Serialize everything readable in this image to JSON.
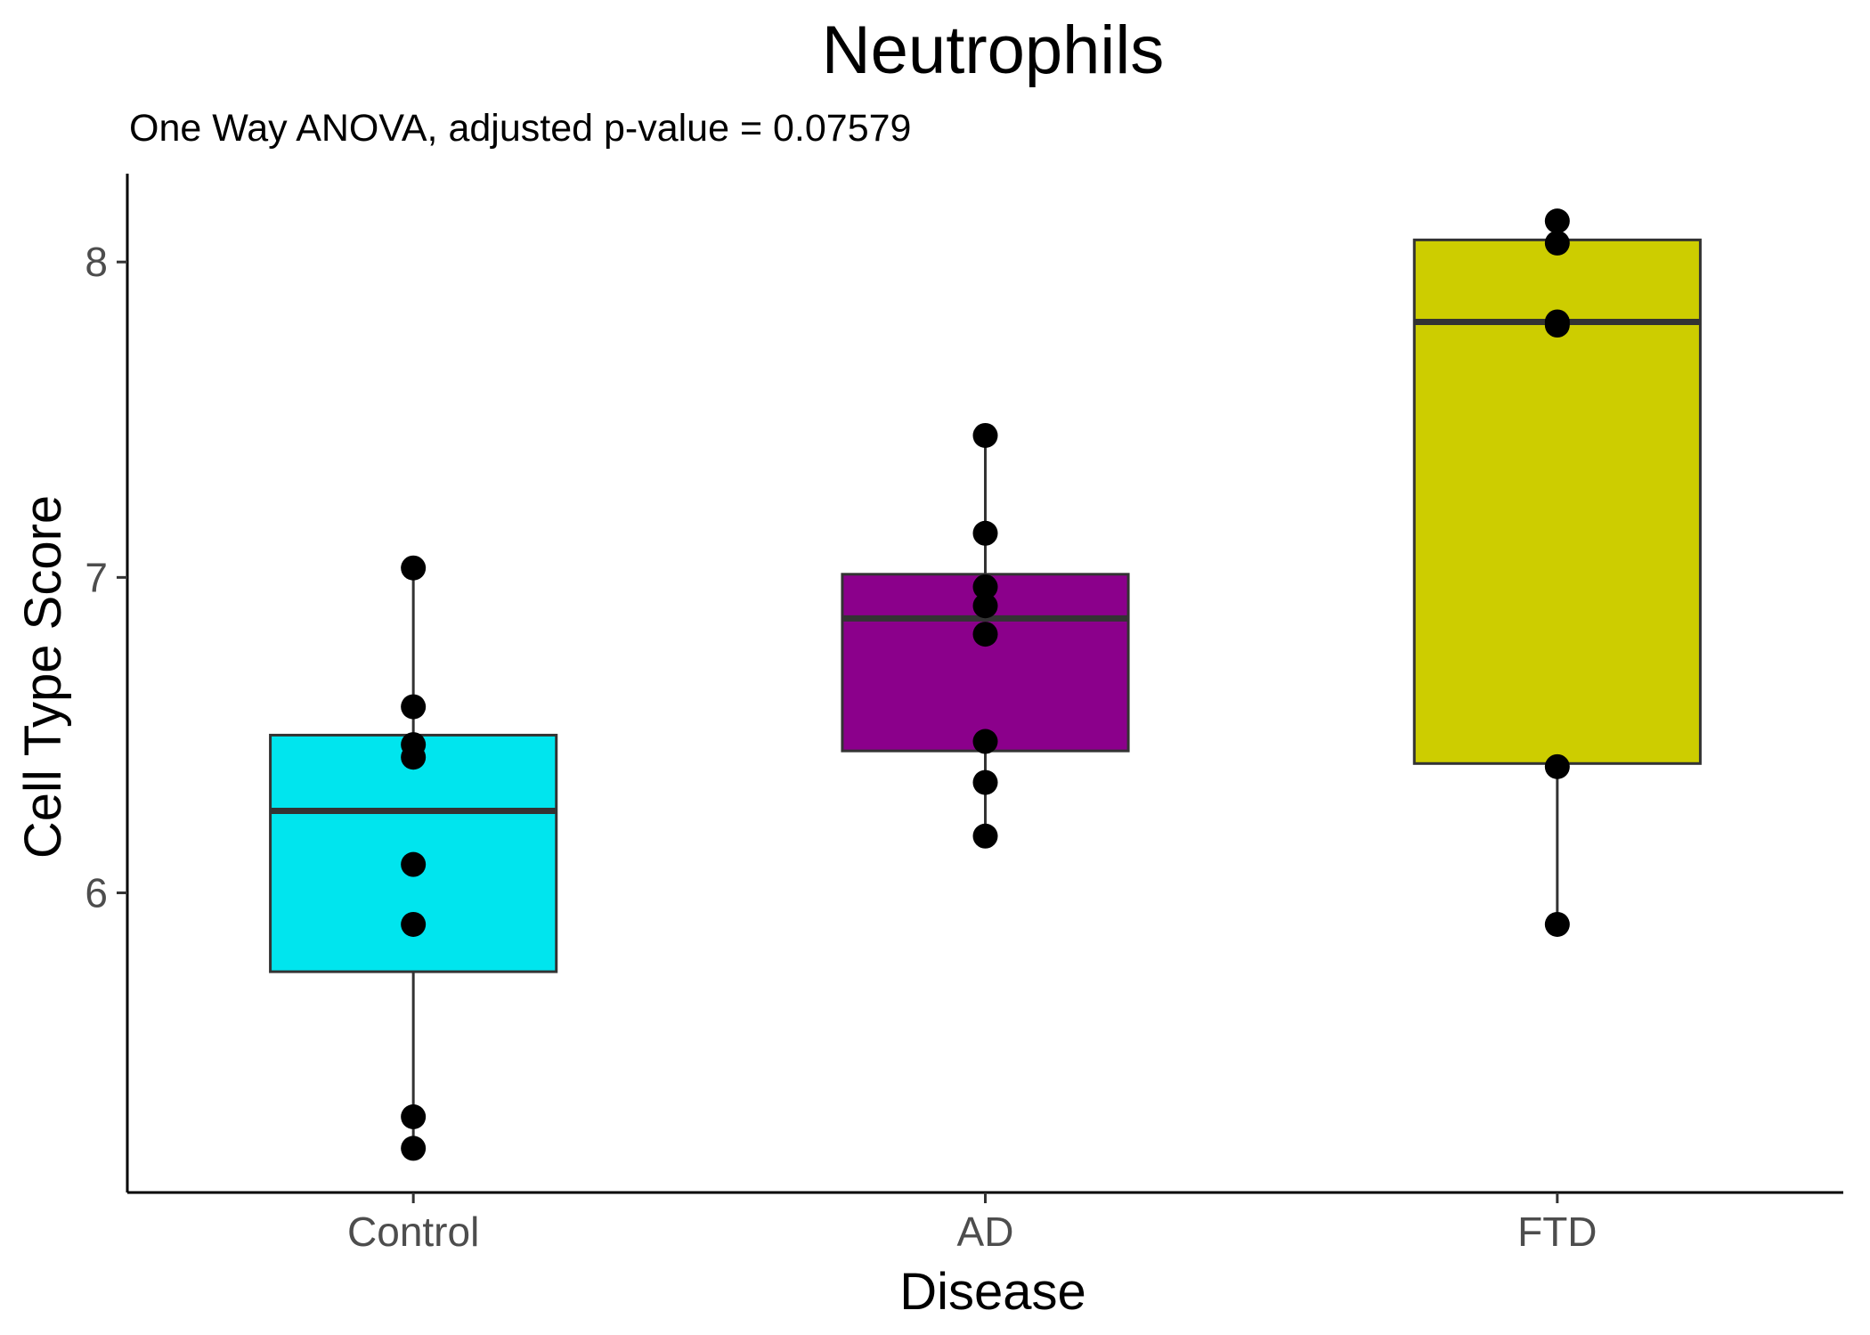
{
  "chart_data": {
    "type": "box",
    "title": "Neutrophils",
    "subtitle": "One Way ANOVA, adjusted p-value = 0.07579",
    "xlabel": "Disease",
    "ylabel": "Cell Type Score",
    "ylim": [
      5.05,
      8.28
    ],
    "yticks": [
      6,
      7,
      8
    ],
    "categories": [
      "Control",
      "AD",
      "FTD"
    ],
    "grid": false,
    "legend": "none",
    "groups": [
      {
        "name": "Control",
        "color": "#00E5EE",
        "q1": 5.75,
        "median": 6.26,
        "q3": 6.5,
        "whisker_low": 5.19,
        "whisker_high": 7.03,
        "points": [
          7.03,
          6.59,
          6.47,
          6.43,
          6.09,
          5.9,
          5.29,
          5.19
        ]
      },
      {
        "name": "AD",
        "color": "#8B008B",
        "q1": 6.45,
        "median": 6.87,
        "q3": 7.01,
        "whisker_low": 6.18,
        "whisker_high": 7.45,
        "points": [
          7.45,
          7.14,
          6.97,
          6.91,
          6.82,
          6.48,
          6.35,
          6.18
        ]
      },
      {
        "name": "FTD",
        "color": "#CDCD00",
        "q1": 6.41,
        "median": 7.81,
        "q3": 8.07,
        "whisker_low": 5.9,
        "whisker_high": 8.13,
        "points": [
          8.13,
          8.06,
          7.81,
          7.8,
          6.4,
          5.9
        ]
      }
    ]
  }
}
